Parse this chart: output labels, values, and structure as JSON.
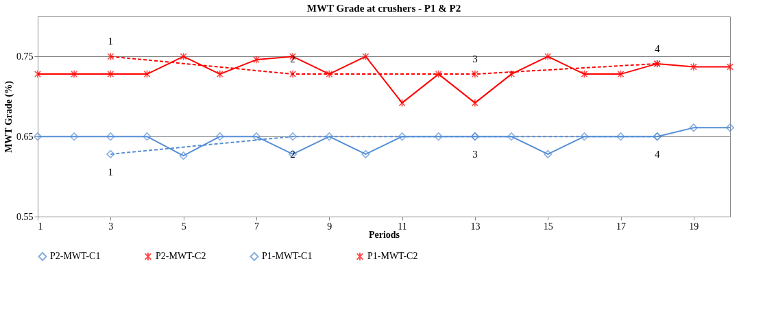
{
  "chart_data": {
    "type": "line",
    "title": "MWT Grade at crushers - P1 & P2",
    "xlabel": "Periods",
    "ylabel": "MWT Grade (%)",
    "xlim": [
      1,
      20
    ],
    "xticks": [
      1,
      3,
      5,
      7,
      9,
      11,
      13,
      15,
      17,
      19
    ],
    "ylim": [
      0.55,
      0.8
    ],
    "yticks": [
      0.55,
      0.65,
      0.75
    ],
    "grid": "y",
    "legend": "bottom",
    "series": [
      {
        "name": "P2-MWT-C1",
        "color": "#558ed5",
        "marker": "diamond",
        "line_style": "solid",
        "x": [
          1,
          2,
          3,
          4,
          5,
          6,
          7,
          8,
          9,
          10,
          11,
          12,
          13,
          14,
          15,
          16,
          17,
          18,
          19,
          20
        ],
        "values": [
          0.65,
          0.65,
          0.65,
          0.65,
          0.626,
          0.65,
          0.65,
          0.628,
          0.65,
          0.628,
          0.65,
          0.65,
          0.65,
          0.65,
          0.628,
          0.65,
          0.65,
          0.65,
          0.661,
          0.661
        ]
      },
      {
        "name": "P2-MWT-C2",
        "color": "#ff0000",
        "marker": "cross",
        "line_style": "solid",
        "x": [
          1,
          2,
          3,
          4,
          5,
          6,
          7,
          8,
          9,
          10,
          11,
          12,
          13,
          14,
          15,
          16,
          17,
          18,
          19,
          20
        ],
        "values": [
          0.728,
          0.728,
          0.728,
          0.728,
          0.75,
          0.728,
          0.746,
          0.75,
          0.728,
          0.75,
          0.692,
          0.728,
          0.692,
          0.728,
          0.75,
          0.728,
          0.728,
          0.741,
          0.737,
          0.737
        ]
      },
      {
        "name": "P1-MWT-C1",
        "color": "#558ed5",
        "marker": "diamond",
        "line_style": "dashed",
        "x": [
          3,
          8,
          13,
          18
        ],
        "values": [
          0.628,
          0.65,
          0.65,
          0.65
        ]
      },
      {
        "name": "P1-MWT-C2",
        "color": "#ff0000",
        "marker": "cross",
        "line_style": "dashed",
        "x": [
          3,
          8,
          13,
          18
        ],
        "values": [
          0.75,
          0.728,
          0.728,
          0.741
        ]
      }
    ],
    "annotations": [
      {
        "text": "1",
        "x": 3,
        "y": 0.75
      },
      {
        "text": "2",
        "x": 8,
        "y": 0.728
      },
      {
        "text": "3",
        "x": 13,
        "y": 0.728
      },
      {
        "text": "4",
        "x": 18,
        "y": 0.741
      },
      {
        "text": "1",
        "x": 3,
        "y": 0.628
      },
      {
        "text": "2",
        "x": 8,
        "y": 0.65
      },
      {
        "text": "3",
        "x": 13,
        "y": 0.65
      },
      {
        "text": "4",
        "x": 18,
        "y": 0.65
      }
    ]
  }
}
